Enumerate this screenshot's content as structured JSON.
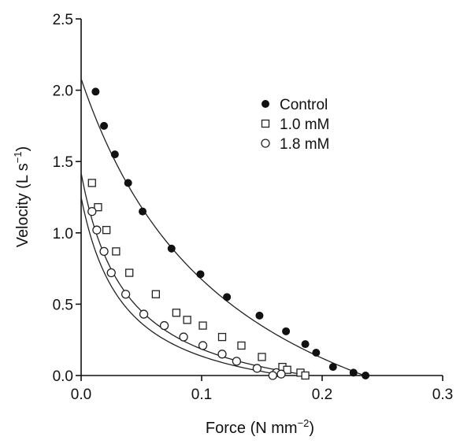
{
  "chart_data": {
    "type": "scatter",
    "xlabel": "Force (N mm",
    "xlabel_sup": "−2",
    "xlabel_end": ")",
    "ylabel": "Velocity (L s",
    "ylabel_sup": "−1",
    "ylabel_end": ")",
    "xlim": [
      0,
      0.3
    ],
    "ylim": [
      0,
      2.5
    ],
    "x_ticks": [
      0.0,
      0.1,
      0.2,
      0.3
    ],
    "x_tick_labels": [
      "0.0",
      "0.1",
      "0.2",
      "0.3"
    ],
    "y_ticks": [
      0.0,
      0.5,
      1.0,
      1.5,
      2.0,
      2.5
    ],
    "y_tick_labels": [
      "0.0",
      "0.5",
      "1.0",
      "1.5",
      "2.0",
      "2.5"
    ],
    "grid": false,
    "legend_position": "top-right",
    "series": [
      {
        "name": "Control",
        "marker": "filled-circle",
        "points": [
          [
            0.012,
            1.99
          ],
          [
            0.019,
            1.75
          ],
          [
            0.028,
            1.55
          ],
          [
            0.039,
            1.35
          ],
          [
            0.051,
            1.15
          ],
          [
            0.075,
            0.89
          ],
          [
            0.099,
            0.71
          ],
          [
            0.121,
            0.55
          ],
          [
            0.148,
            0.42
          ],
          [
            0.17,
            0.31
          ],
          [
            0.186,
            0.22
          ],
          [
            0.195,
            0.16
          ],
          [
            0.209,
            0.06
          ],
          [
            0.226,
            0.02
          ],
          [
            0.236,
            0.0
          ]
        ],
        "fit": {
          "v0": 2.08,
          "f0": 0.235,
          "k": 0.55
        }
      },
      {
        "name": "1.0 mM",
        "marker": "open-square",
        "points": [
          [
            0.009,
            1.35
          ],
          [
            0.014,
            1.18
          ],
          [
            0.021,
            1.02
          ],
          [
            0.029,
            0.87
          ],
          [
            0.04,
            0.72
          ],
          [
            0.062,
            0.57
          ],
          [
            0.079,
            0.44
          ],
          [
            0.088,
            0.39
          ],
          [
            0.101,
            0.35
          ],
          [
            0.117,
            0.27
          ],
          [
            0.133,
            0.21
          ],
          [
            0.15,
            0.13
          ],
          [
            0.167,
            0.06
          ],
          [
            0.171,
            0.04
          ],
          [
            0.182,
            0.02
          ],
          [
            0.186,
            0.0
          ]
        ],
        "fit": {
          "v0": 1.42,
          "f0": 0.19,
          "k": 0.2
        }
      },
      {
        "name": "1.8 mM",
        "marker": "open-circle",
        "points": [
          [
            0.009,
            1.15
          ],
          [
            0.013,
            1.02
          ],
          [
            0.019,
            0.87
          ],
          [
            0.025,
            0.72
          ],
          [
            0.037,
            0.57
          ],
          [
            0.052,
            0.43
          ],
          [
            0.069,
            0.35
          ],
          [
            0.085,
            0.27
          ],
          [
            0.101,
            0.21
          ],
          [
            0.117,
            0.15
          ],
          [
            0.129,
            0.1
          ],
          [
            0.146,
            0.05
          ],
          [
            0.162,
            0.02
          ],
          [
            0.166,
            0.01
          ],
          [
            0.159,
            0.0
          ]
        ],
        "fit": {
          "v0": 1.25,
          "f0": 0.17,
          "k": 0.21
        }
      }
    ]
  }
}
